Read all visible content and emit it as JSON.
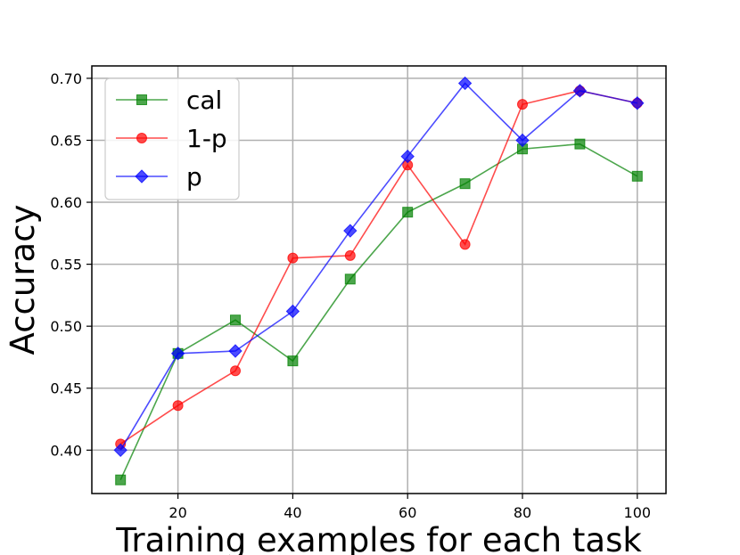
{
  "chart_data": {
    "type": "line",
    "title": "",
    "xlabel": "Training examples for each task",
    "ylabel": "Accuracy",
    "x": [
      10,
      20,
      30,
      40,
      50,
      60,
      70,
      80,
      90,
      100
    ],
    "xlim": [
      5,
      105
    ],
    "ylim": [
      0.365,
      0.71
    ],
    "xticks": [
      20,
      40,
      60,
      80,
      100
    ],
    "yticks": [
      0.4,
      0.45,
      0.5,
      0.55,
      0.6,
      0.65,
      0.7
    ],
    "xtick_labels": [
      "20",
      "40",
      "60",
      "80",
      "100"
    ],
    "ytick_labels": [
      "0.40",
      "0.45",
      "0.50",
      "0.55",
      "0.60",
      "0.65",
      "0.70"
    ],
    "grid": true,
    "legend_position": "top-left",
    "series": [
      {
        "name": "cal",
        "color": "#008000",
        "marker": "square",
        "values": [
          0.376,
          0.478,
          0.505,
          0.472,
          0.538,
          0.592,
          0.615,
          0.643,
          0.647,
          0.621
        ]
      },
      {
        "name": "1-p",
        "color": "#ff0000",
        "marker": "circle",
        "values": [
          0.405,
          0.436,
          0.464,
          0.555,
          0.557,
          0.63,
          0.566,
          0.679,
          0.69,
          0.68
        ]
      },
      {
        "name": "p",
        "color": "#0000ff",
        "marker": "diamond",
        "values": [
          0.4,
          0.478,
          0.48,
          0.512,
          0.577,
          0.637,
          0.696,
          0.65,
          0.69,
          0.68
        ]
      }
    ]
  }
}
